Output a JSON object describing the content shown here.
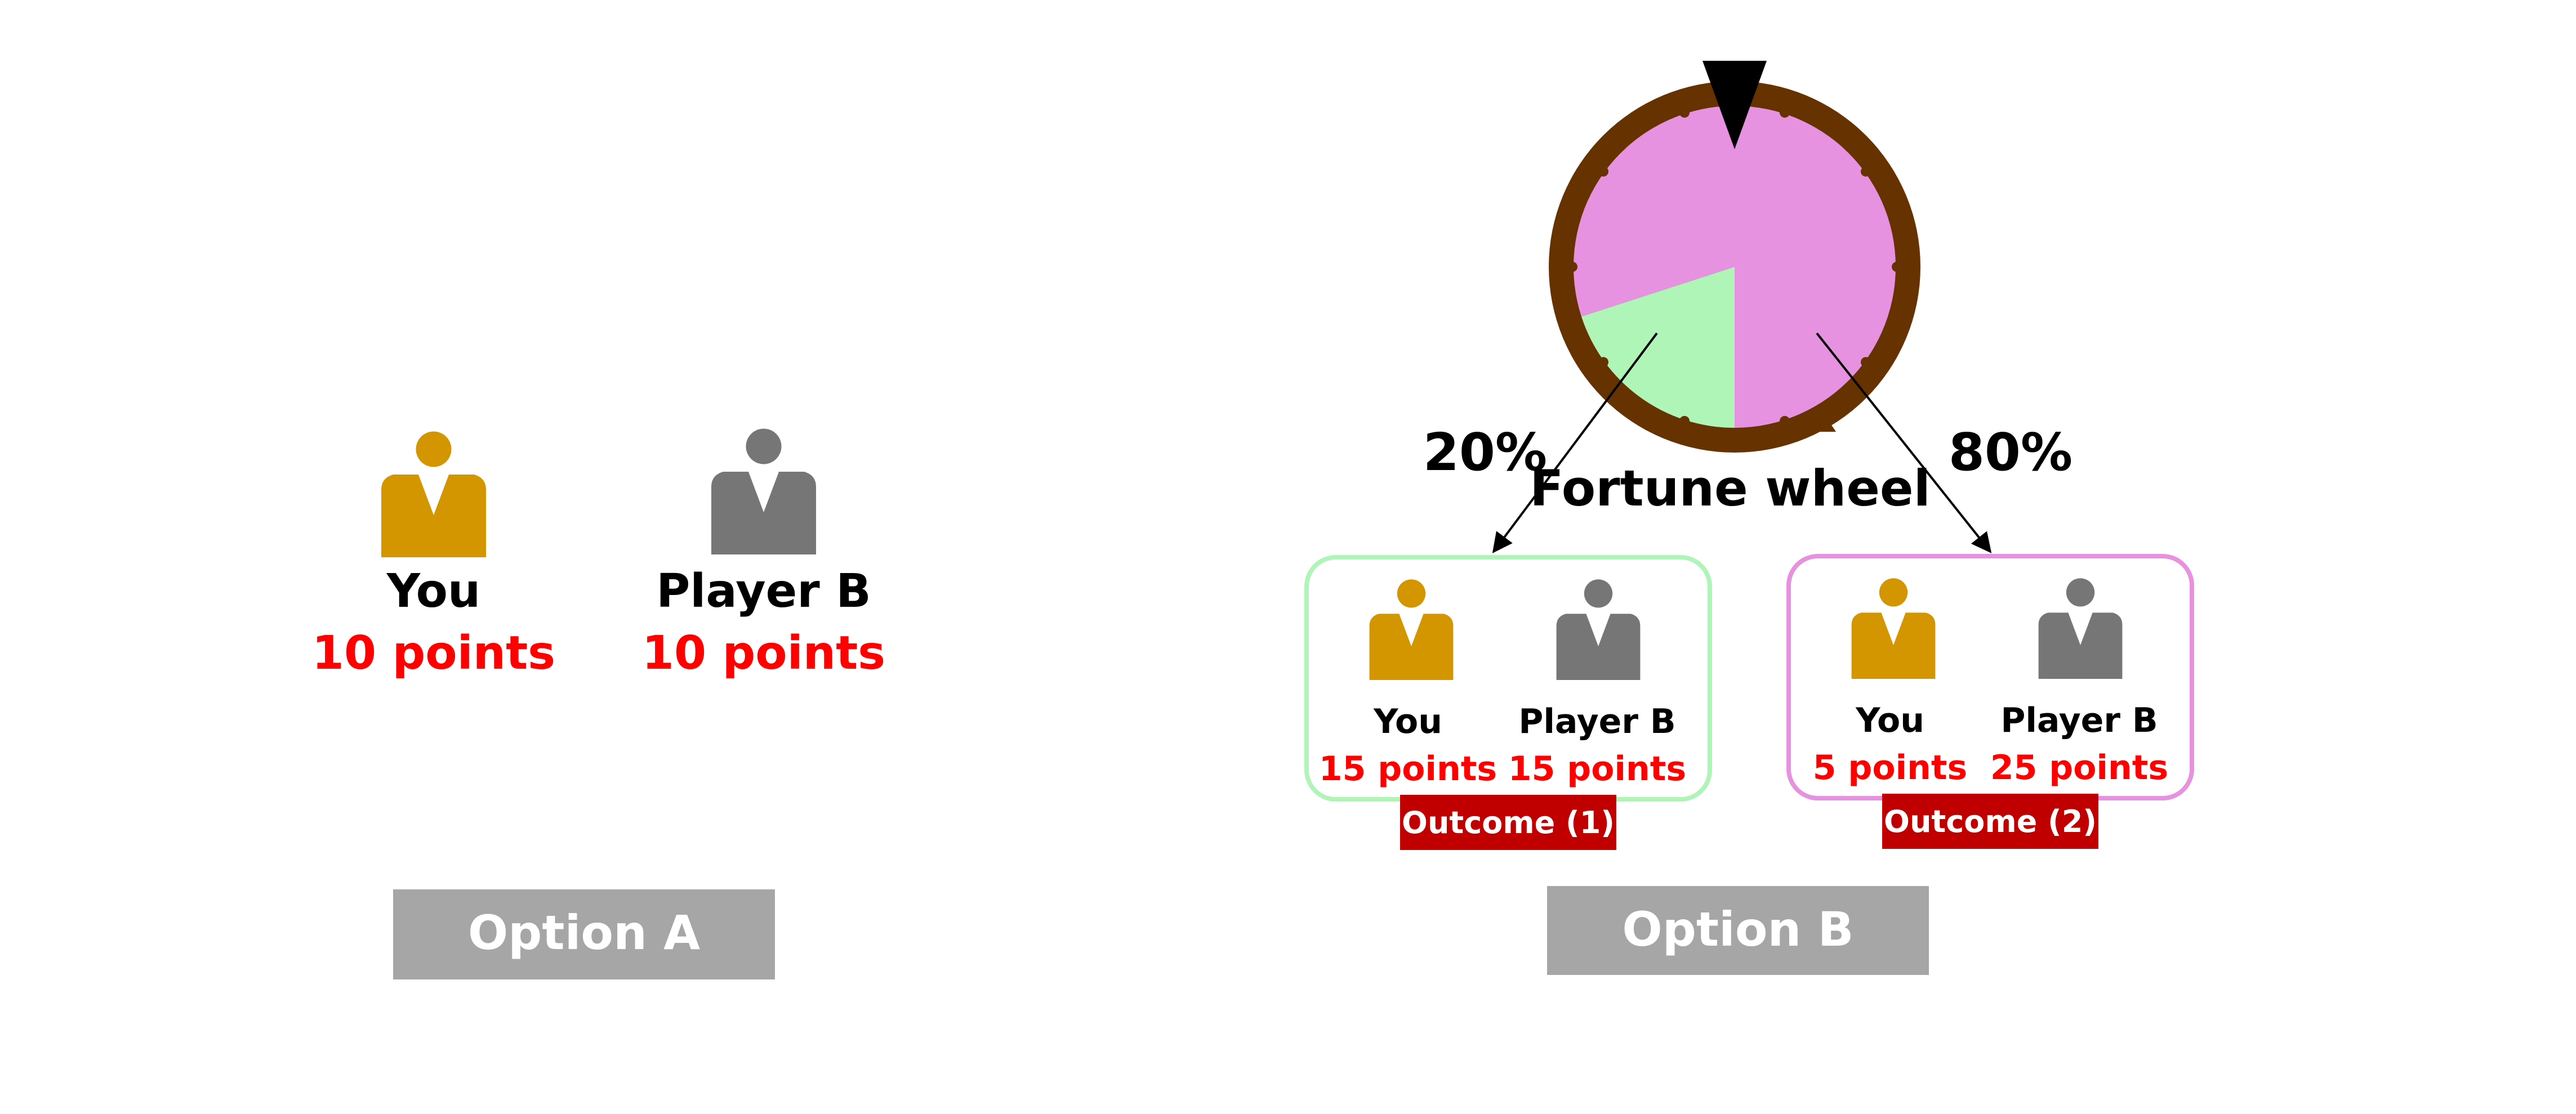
{
  "colors": {
    "you": "#D39500",
    "player_b": "#767676",
    "points": "#FF0000",
    "button_bg": "#A6A6A6",
    "outcome_badge": "#C00000",
    "wheel_rim": "#663300",
    "wheel_pink": "#E692E0",
    "wheel_green": "#B0F5B8",
    "outcome1_border": "#B0F5B8",
    "outcome2_border": "#E692E0"
  },
  "option_a": {
    "you_label": "You",
    "you_points": "10 points",
    "player_b_label": "Player B",
    "player_b_points": "10 points",
    "button_label": "Option A"
  },
  "option_b": {
    "wheel_label": "Fortune wheel",
    "wheel_green_share": 0.2,
    "wheel_pink_share": 0.8,
    "left_percent": "20%",
    "right_percent": "80%",
    "outcome1": {
      "you_label": "You",
      "you_points": "15 points",
      "player_b_label": "Player B",
      "player_b_points": "15 points",
      "badge": "Outcome (1)"
    },
    "outcome2": {
      "you_label": "You",
      "you_points": "5 points",
      "player_b_label": "Player B",
      "player_b_points": "25 points",
      "badge": "Outcome (2)"
    },
    "button_label": "Option B"
  },
  "icons": [
    "person-icon-you",
    "person-icon-player-b",
    "wheel-pointer-icon"
  ]
}
